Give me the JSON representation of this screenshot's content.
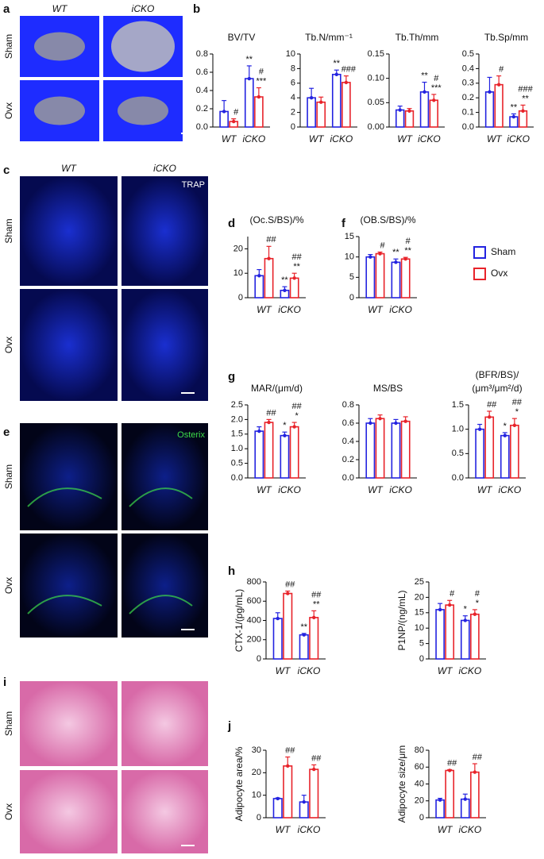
{
  "panel_labels": [
    "a",
    "b",
    "c",
    "d",
    "e",
    "f",
    "g",
    "h",
    "i",
    "j"
  ],
  "legend": [
    {
      "name": "Sham",
      "color": "#2323e0"
    },
    {
      "name": "Ovx",
      "color": "#e8232a"
    }
  ],
  "images": {
    "a": {
      "columns": [
        "WT",
        "iCKO"
      ],
      "rows": [
        "Sham",
        "Ovx"
      ]
    },
    "c": {
      "columns": [
        "WT",
        "iCKO"
      ],
      "rows": [
        "Sham",
        "Ovx"
      ],
      "stain": "TRAP"
    },
    "e": {
      "rows": [
        "Sham",
        "Ovx"
      ],
      "stain": "Osterix"
    },
    "i": {
      "rows": [
        "Sham",
        "Ovx"
      ]
    }
  },
  "chart_data": [
    {
      "type": "bar",
      "title": "BV/TV",
      "categories": [
        "WT",
        "iCKO"
      ],
      "series": [
        {
          "values": [
            0.17,
            0.53
          ],
          "errors": [
            0.12,
            0.14
          ],
          "annotations": [
            null,
            [
              "**"
            ]
          ]
        },
        {
          "values": [
            0.06,
            0.33
          ],
          "errors": [
            0.03,
            0.1
          ],
          "annotations": [
            [
              "#"
            ],
            [
              "#",
              "***"
            ]
          ]
        }
      ],
      "ylim": [
        0,
        0.8
      ],
      "yticks": [
        {
          "value": 0,
          "label": "0.0"
        },
        0.2,
        0.4,
        0.6,
        0.8
      ]
    },
    {
      "type": "bar",
      "title": "Tb.N/mm⁻¹",
      "categories": [
        "WT",
        "iCKO"
      ],
      "series": [
        {
          "values": [
            4.0,
            7.2
          ],
          "errors": [
            1.3,
            0.6
          ],
          "annotations": [
            null,
            [
              "**"
            ]
          ]
        },
        {
          "values": [
            3.4,
            6.1
          ],
          "errors": [
            0.7,
            0.9
          ],
          "annotations": [
            null,
            [
              "###"
            ]
          ]
        }
      ],
      "ylim": [
        0,
        10
      ],
      "yticks": [
        0,
        2,
        4,
        6,
        8,
        10
      ]
    },
    {
      "type": "bar",
      "title": "Tb.Th/mm",
      "categories": [
        "WT",
        "iCKO"
      ],
      "series": [
        {
          "values": [
            0.035,
            0.072
          ],
          "errors": [
            0.008,
            0.02
          ],
          "annotations": [
            null,
            [
              "**"
            ]
          ]
        },
        {
          "values": [
            0.033,
            0.055
          ],
          "errors": [
            0.005,
            0.012
          ],
          "annotations": [
            null,
            [
              "#",
              "***"
            ]
          ]
        }
      ],
      "ylim": [
        0,
        0.15
      ],
      "yticks": [
        {
          "value": 0,
          "label": "0.00"
        },
        0.05,
        {
          "value": 0.1,
          "label": "0.10"
        },
        0.15
      ]
    },
    {
      "type": "bar",
      "title": "Tb.Sp/mm",
      "categories": [
        "WT",
        "iCKO"
      ],
      "series": [
        {
          "values": [
            0.24,
            0.07
          ],
          "errors": [
            0.1,
            0.02
          ],
          "annotations": [
            null,
            [
              "**"
            ]
          ]
        },
        {
          "values": [
            0.29,
            0.11
          ],
          "errors": [
            0.06,
            0.04
          ],
          "annotations": [
            [
              "#"
            ],
            [
              "###",
              "**"
            ]
          ]
        }
      ],
      "ylim": [
        0,
        0.5
      ],
      "yticks": [
        {
          "value": 0,
          "label": "0.0"
        },
        0.1,
        0.2,
        0.3,
        0.4,
        0.5
      ]
    },
    {
      "type": "bar",
      "title": "(Oc.S/BS)/%",
      "categories": [
        "WT",
        "iCKO"
      ],
      "series": [
        {
          "values": [
            9,
            3
          ],
          "errors": [
            2.5,
            1.5
          ],
          "annotations": [
            null,
            [
              "**"
            ]
          ]
        },
        {
          "values": [
            16,
            8
          ],
          "errors": [
            5,
            2
          ],
          "annotations": [
            [
              "##"
            ],
            [
              "##",
              "**"
            ]
          ]
        }
      ],
      "ylim": [
        0,
        25
      ],
      "yticks": [
        0,
        10,
        20
      ]
    },
    {
      "type": "bar",
      "title": "(OB.S/BS)/%",
      "categories": [
        "WT",
        "iCKO"
      ],
      "series": [
        {
          "values": [
            10,
            8.7
          ],
          "errors": [
            0.6,
            0.8
          ],
          "annotations": [
            null,
            [
              "**"
            ]
          ]
        },
        {
          "values": [
            10.8,
            9.5
          ],
          "errors": [
            0.4,
            0.4
          ],
          "annotations": [
            [
              "#"
            ],
            [
              "#",
              "**"
            ]
          ]
        }
      ],
      "ylim": [
        0,
        15
      ],
      "yticks": [
        0,
        5,
        10,
        15
      ]
    },
    {
      "type": "bar",
      "title": "MAR/(μm/d)",
      "categories": [
        "WT",
        "iCKO"
      ],
      "series": [
        {
          "values": [
            1.6,
            1.45
          ],
          "errors": [
            0.15,
            0.12
          ],
          "annotations": [
            null,
            [
              "*"
            ]
          ]
        },
        {
          "values": [
            1.9,
            1.75
          ],
          "errors": [
            0.1,
            0.15
          ],
          "annotations": [
            [
              "##"
            ],
            [
              "##",
              "*"
            ]
          ]
        }
      ],
      "ylim": [
        0,
        2.5
      ],
      "yticks": [
        {
          "value": 0,
          "label": "0.0"
        },
        0.5,
        {
          "value": 1,
          "label": "1.0"
        },
        1.5,
        {
          "value": 2,
          "label": "2.0"
        },
        2.5
      ]
    },
    {
      "type": "bar",
      "title": "MS/BS",
      "categories": [
        "WT",
        "iCKO"
      ],
      "series": [
        {
          "values": [
            0.6,
            0.6
          ],
          "errors": [
            0.05,
            0.04
          ],
          "annotations": [
            null,
            null
          ]
        },
        {
          "values": [
            0.65,
            0.62
          ],
          "errors": [
            0.04,
            0.05
          ],
          "annotations": [
            null,
            null
          ]
        }
      ],
      "ylim": [
        0,
        0.8
      ],
      "yticks": [
        {
          "value": 0,
          "label": "0.0"
        },
        0.2,
        0.4,
        0.6,
        0.8
      ]
    },
    {
      "type": "bar",
      "title": [
        "(BFR/BS)/",
        "(μm³/μm²/d)"
      ],
      "categories": [
        "WT",
        "iCKO"
      ],
      "series": [
        {
          "values": [
            1.0,
            0.87
          ],
          "errors": [
            0.1,
            0.06
          ],
          "annotations": [
            null,
            [
              "*"
            ]
          ]
        },
        {
          "values": [
            1.25,
            1.08
          ],
          "errors": [
            0.12,
            0.14
          ],
          "annotations": [
            [
              "##"
            ],
            [
              "##",
              "*"
            ]
          ]
        }
      ],
      "ylim": [
        0,
        1.5
      ],
      "yticks": [
        {
          "value": 0,
          "label": "0.0"
        },
        0.5,
        {
          "value": 1,
          "label": "1.0"
        },
        1.5
      ]
    },
    {
      "type": "bar",
      "y_label": "CTX-1/(pg/mL)",
      "categories": [
        "WT",
        "iCKO"
      ],
      "series": [
        {
          "values": [
            420,
            250
          ],
          "errors": [
            60,
            15
          ],
          "annotations": [
            null,
            [
              "**"
            ]
          ]
        },
        {
          "values": [
            680,
            430
          ],
          "errors": [
            25,
            70
          ],
          "annotations": [
            [
              "##"
            ],
            [
              "##",
              "**"
            ]
          ]
        }
      ],
      "ylim": [
        0,
        800
      ],
      "yticks": [
        0,
        200,
        400,
        600,
        800
      ]
    },
    {
      "type": "bar",
      "y_label": "P1NP/(ng/mL)",
      "categories": [
        "WT",
        "iCKO"
      ],
      "series": [
        {
          "values": [
            16,
            12.5
          ],
          "errors": [
            2,
            1.5
          ],
          "annotations": [
            null,
            [
              "*"
            ]
          ]
        },
        {
          "values": [
            17.5,
            14.5
          ],
          "errors": [
            1.5,
            1.5
          ],
          "annotations": [
            [
              "#"
            ],
            [
              "#",
              "*"
            ]
          ]
        }
      ],
      "ylim": [
        0,
        25
      ],
      "yticks": [
        0,
        5,
        10,
        15,
        20,
        25
      ]
    },
    {
      "type": "bar",
      "y_label": "Adipocyte area/%",
      "categories": [
        "WT",
        "iCKO"
      ],
      "series": [
        {
          "values": [
            8.5,
            7
          ],
          "errors": [
            0.3,
            3
          ],
          "annotations": [
            null,
            null
          ]
        },
        {
          "values": [
            23,
            21.5
          ],
          "errors": [
            4,
            2
          ],
          "annotations": [
            [
              "##"
            ],
            [
              "##"
            ]
          ]
        }
      ],
      "ylim": [
        0,
        30
      ],
      "yticks": [
        0,
        10,
        20,
        30
      ]
    },
    {
      "type": "bar",
      "y_label": "Adipocyte size/μm",
      "categories": [
        "WT",
        "iCKO"
      ],
      "series": [
        {
          "values": [
            21,
            22
          ],
          "errors": [
            2,
            6
          ],
          "annotations": [
            null,
            null
          ]
        },
        {
          "values": [
            56,
            54
          ],
          "errors": [
            1,
            10
          ],
          "annotations": [
            [
              "##"
            ],
            [
              "##"
            ]
          ]
        }
      ],
      "ylim": [
        0,
        80
      ],
      "yticks": [
        0,
        20,
        40,
        60,
        80
      ]
    }
  ]
}
